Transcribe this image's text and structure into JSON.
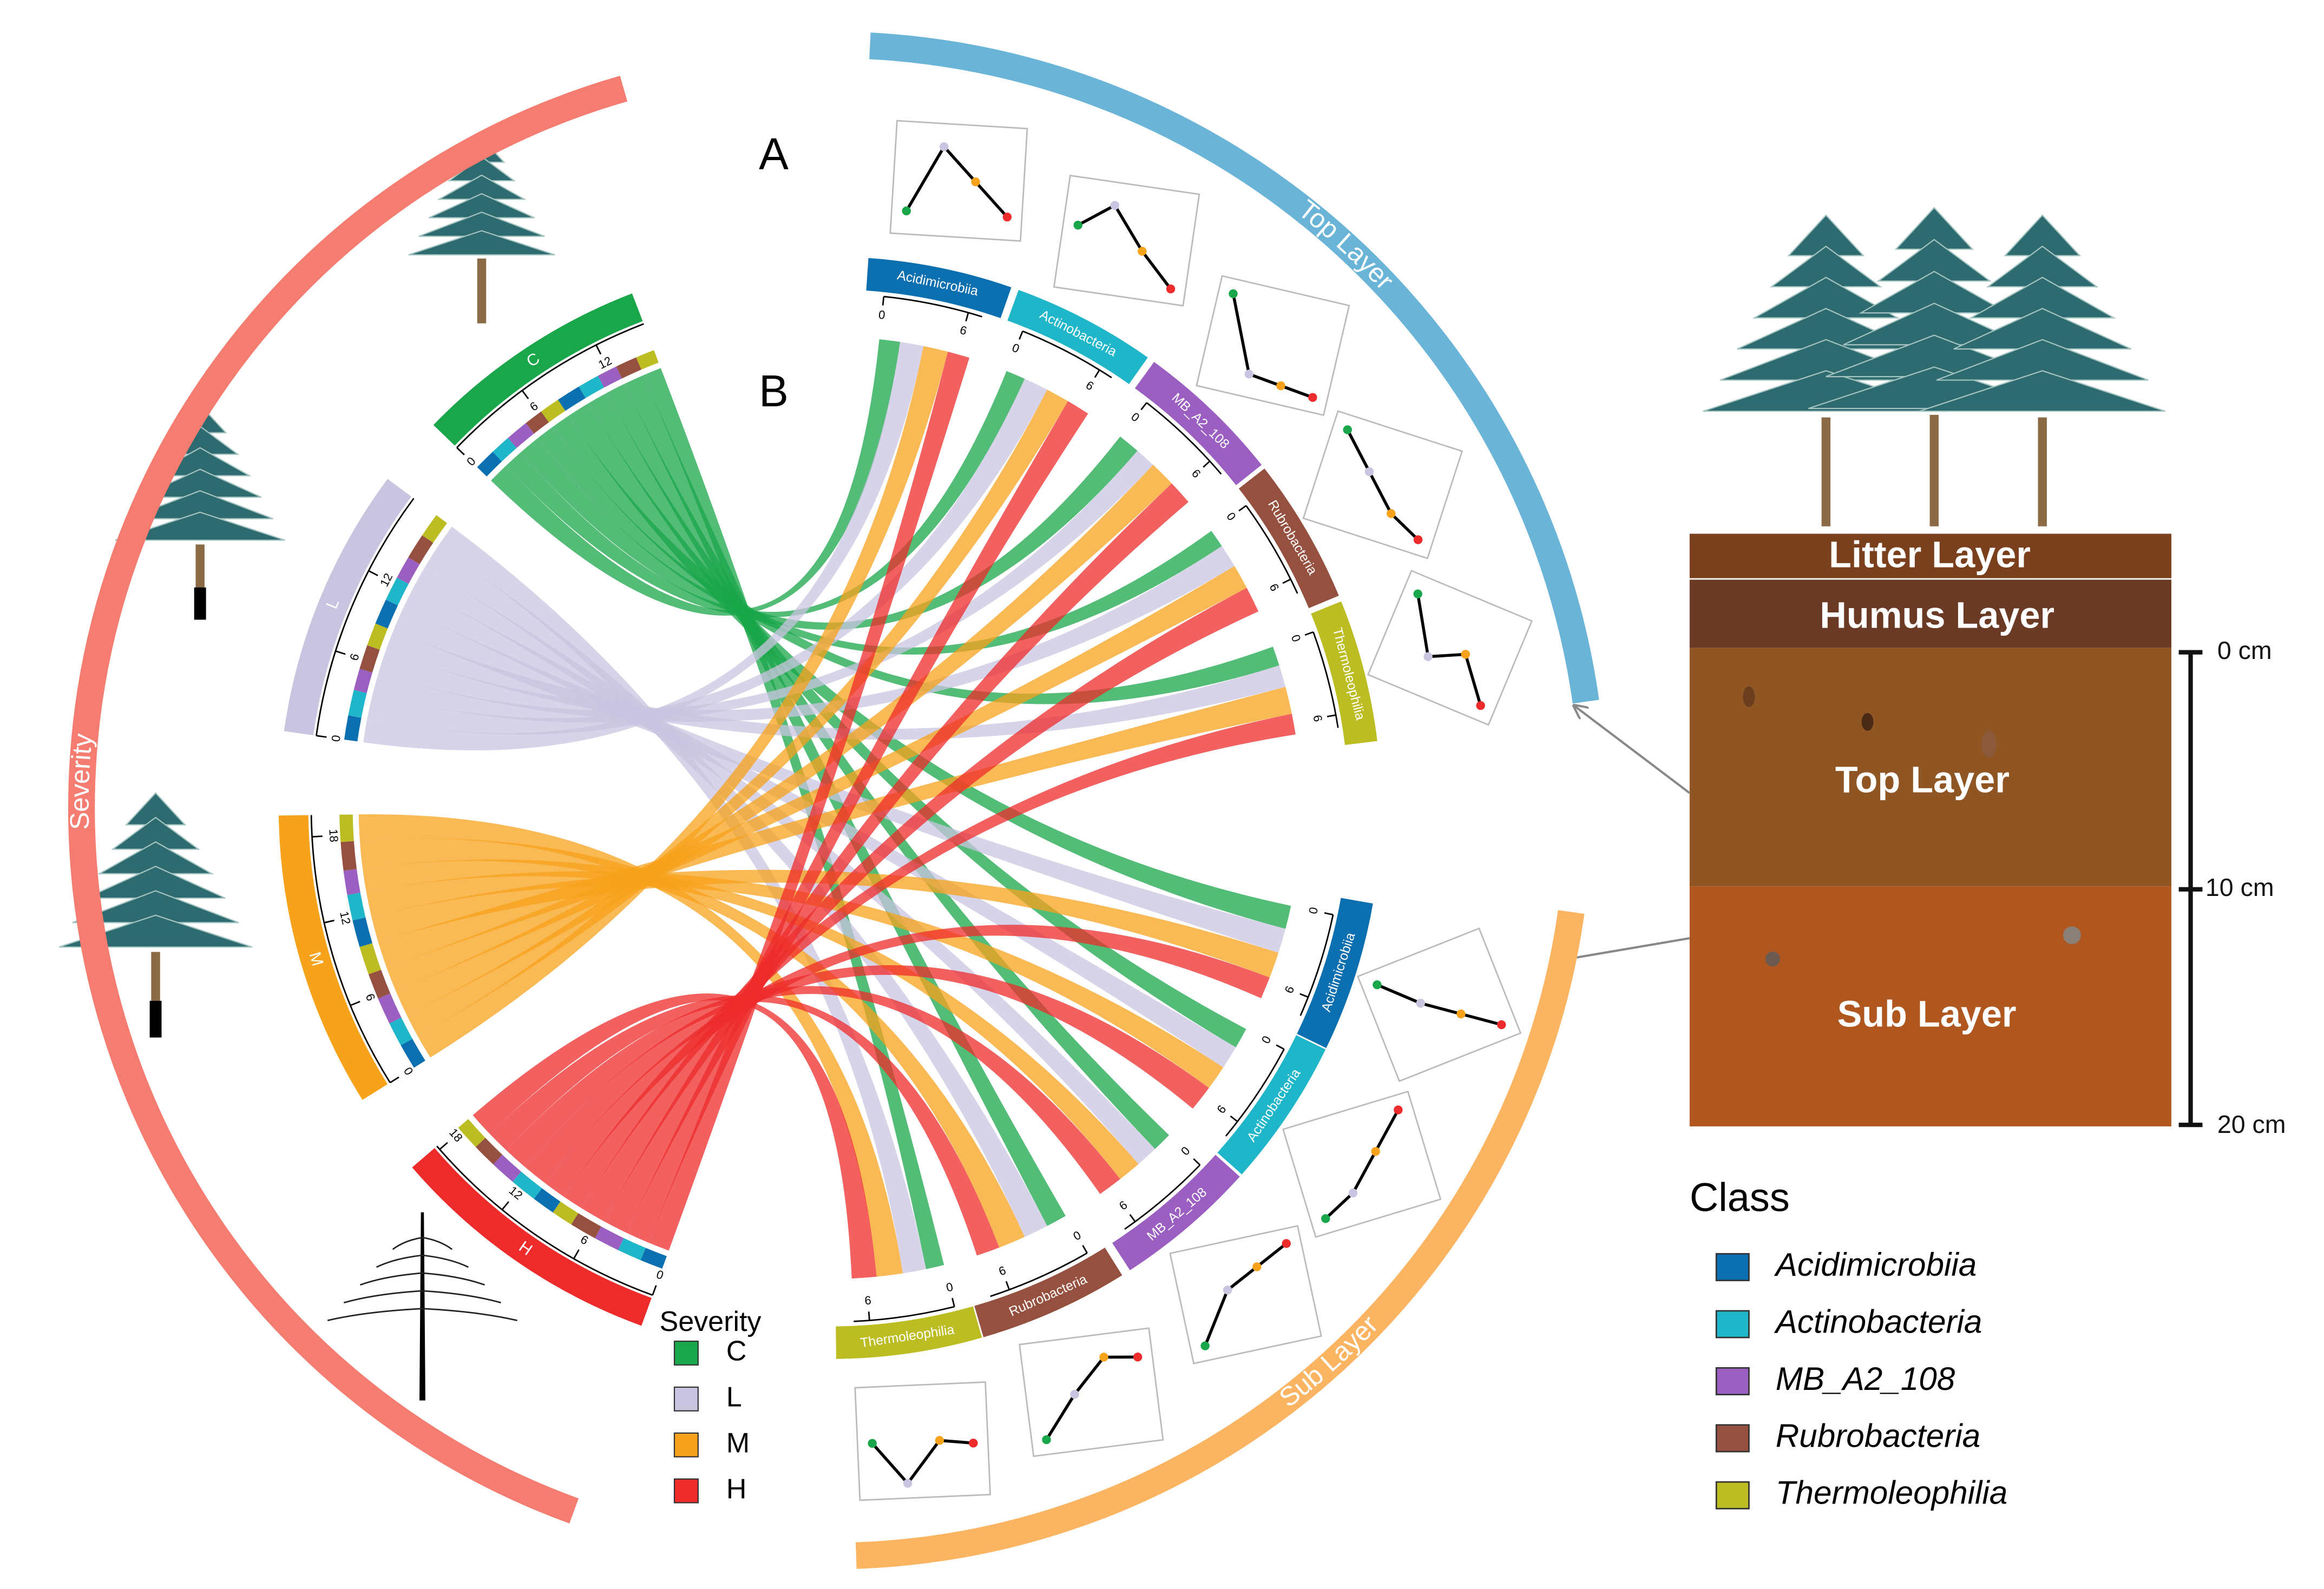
{
  "chart_data": {
    "type": "chord",
    "panel_labels": [
      "A",
      "B"
    ],
    "severity": {
      "title": "Severity",
      "levels": [
        {
          "name": "C",
          "color": "#1aa64a"
        },
        {
          "name": "L",
          "color": "#c9c4e0"
        },
        {
          "name": "M",
          "color": "#f7a21b"
        },
        {
          "name": "H",
          "color": "#ee2b2b"
        }
      ],
      "ticks": [
        0,
        6,
        12,
        18
      ],
      "arc_color": "#f47c70"
    },
    "layers": [
      {
        "name": "Top Layer",
        "color": "#6ab4d8"
      },
      {
        "name": "Sub Layer",
        "color": "#fbb562"
      }
    ],
    "class_title": "Class",
    "classes": [
      {
        "name": "Acidimicrobiia",
        "color": "#0b6fb0"
      },
      {
        "name": "Actinobacteria",
        "color": "#1eb6c8"
      },
      {
        "name": "MB_A2_108",
        "color": "#9a5fc0"
      },
      {
        "name": "Rubrobacteria",
        "color": "#96503f"
      },
      {
        "name": "Thermoleophilia",
        "color": "#bcbd22"
      }
    ],
    "target_ticks": [
      0,
      6
    ],
    "flows": [
      [
        [
          1.6,
          1.8,
          1.9,
          1.7
        ],
        [
          1.5,
          1.9,
          1.8,
          1.8
        ],
        [
          1.7,
          1.6,
          2.0,
          1.9
        ],
        [
          1.4,
          1.8,
          1.9,
          2.0
        ],
        [
          1.5,
          1.7,
          2.1,
          1.6
        ]
      ],
      [
        [
          1.8,
          1.9,
          2.0,
          1.7
        ],
        [
          1.6,
          1.8,
          1.9,
          2.0
        ],
        [
          1.5,
          1.7,
          1.8,
          1.9
        ],
        [
          1.6,
          1.9,
          2.1,
          1.8
        ],
        [
          1.4,
          1.8,
          2.0,
          1.9
        ]
      ]
    ],
    "trends": [
      [
        [
          0.1,
          0.9,
          0.5,
          0.1
        ],
        [
          0.6,
          0.9,
          0.4,
          0.0
        ],
        [
          1.0,
          0.1,
          0.05,
          0.0
        ],
        [
          1.0,
          0.6,
          0.2,
          0.0
        ],
        [
          0.95,
          0.3,
          0.5,
          0.0
        ]
      ],
      [
        [
          1.0,
          0.6,
          0.3,
          0.0
        ],
        [
          0.0,
          0.2,
          0.6,
          1.0
        ],
        [
          0.0,
          0.6,
          0.8,
          1.0
        ],
        [
          0.0,
          0.5,
          0.9,
          0.85
        ],
        [
          0.5,
          0.0,
          0.5,
          0.45
        ]
      ]
    ]
  },
  "soil": {
    "layers": [
      "Litter Layer",
      "Humus Layer",
      "Top Layer",
      "Sub Layer"
    ],
    "depths": [
      "0 cm",
      "10 cm",
      "20 cm"
    ]
  }
}
